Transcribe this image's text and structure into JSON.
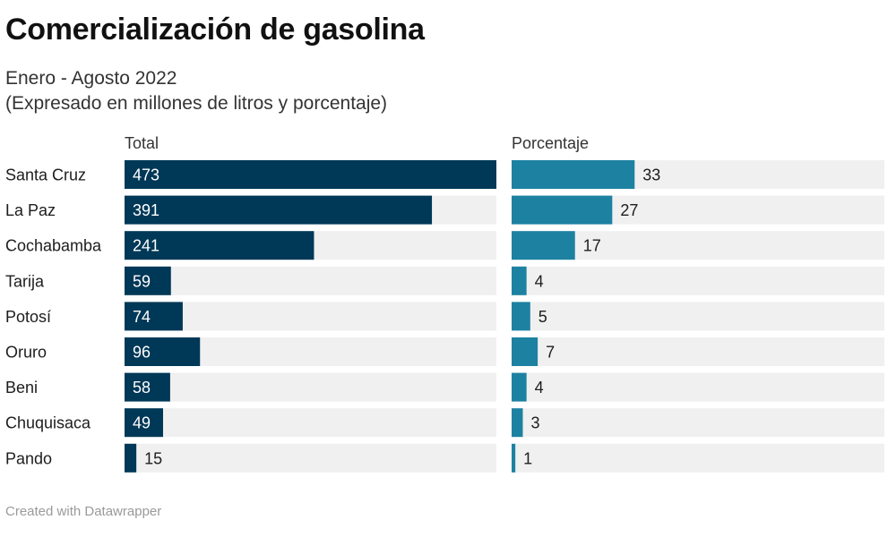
{
  "title": "Comercialización de gasolina",
  "subtitle_line1": "Enero - Agosto 2022",
  "subtitle_line2": "(Expresado en millones de litros y porcentaje)",
  "footer": "Created with Datawrapper",
  "colors": {
    "total_bar": "#003857",
    "percent_bar": "#1d81a2",
    "track": "#f0f0f0"
  },
  "chart_data": [
    {
      "type": "bar",
      "orientation": "horizontal",
      "column_header": "Total",
      "categories": [
        "Santa Cruz",
        "La Paz",
        "Cochabamba",
        "Tarija",
        "Potosí",
        "Oruro",
        "Beni",
        "Chuquisaca",
        "Pando"
      ],
      "values": [
        473,
        391,
        241,
        59,
        74,
        96,
        58,
        49,
        15
      ],
      "xlim": [
        0,
        473
      ]
    },
    {
      "type": "bar",
      "orientation": "horizontal",
      "column_header": "Porcentaje",
      "categories": [
        "Santa Cruz",
        "La Paz",
        "Cochabamba",
        "Tarija",
        "Potosí",
        "Oruro",
        "Beni",
        "Chuquisaca",
        "Pando"
      ],
      "values": [
        33,
        27,
        17,
        4,
        5,
        7,
        4,
        3,
        1
      ],
      "xlim": [
        0,
        100
      ]
    }
  ]
}
